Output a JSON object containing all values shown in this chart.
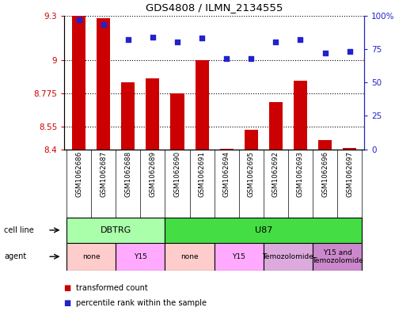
{
  "title": "GDS4808 / ILMN_2134555",
  "samples": [
    "GSM1062686",
    "GSM1062687",
    "GSM1062688",
    "GSM1062689",
    "GSM1062690",
    "GSM1062691",
    "GSM1062694",
    "GSM1062695",
    "GSM1062692",
    "GSM1062693",
    "GSM1062696",
    "GSM1062697"
  ],
  "bar_values": [
    9.3,
    9.28,
    8.85,
    8.88,
    8.775,
    9.0,
    8.405,
    8.53,
    8.72,
    8.86,
    8.46,
    8.41
  ],
  "percentile_values": [
    97,
    93,
    82,
    84,
    80,
    83,
    68,
    68,
    80,
    82,
    72,
    73
  ],
  "ylim_left": [
    8.4,
    9.3
  ],
  "ylim_right": [
    0,
    100
  ],
  "yticks_left": [
    8.4,
    8.55,
    8.775,
    9.0,
    9.3
  ],
  "ytick_labels_left": [
    "8.4",
    "8.55",
    "8.775",
    "9",
    "9.3"
  ],
  "yticks_right": [
    0,
    25,
    50,
    75,
    100
  ],
  "ytick_labels_right": [
    "0",
    "25",
    "50",
    "75",
    "100%"
  ],
  "bar_color": "#cc0000",
  "dot_color": "#2222cc",
  "bar_baseline": 8.4,
  "cell_line_groups": [
    {
      "label": "DBTRG",
      "start": 0,
      "end": 3,
      "color": "#aaffaa"
    },
    {
      "label": "U87",
      "start": 4,
      "end": 11,
      "color": "#44dd44"
    }
  ],
  "agent_groups": [
    {
      "label": "none",
      "start": 0,
      "end": 1,
      "color": "#ffcccc"
    },
    {
      "label": "Y15",
      "start": 2,
      "end": 3,
      "color": "#ffaaff"
    },
    {
      "label": "none",
      "start": 4,
      "end": 5,
      "color": "#ffcccc"
    },
    {
      "label": "Y15",
      "start": 6,
      "end": 7,
      "color": "#ffaaff"
    },
    {
      "label": "Temozolomide",
      "start": 8,
      "end": 9,
      "color": "#ddaadd"
    },
    {
      "label": "Y15 and\nTemozolomide",
      "start": 10,
      "end": 11,
      "color": "#cc88cc"
    }
  ],
  "legend_bar_label": "transformed count",
  "legend_dot_label": "percentile rank within the sample",
  "left_tick_color": "#cc0000",
  "right_tick_color": "#2222cc"
}
